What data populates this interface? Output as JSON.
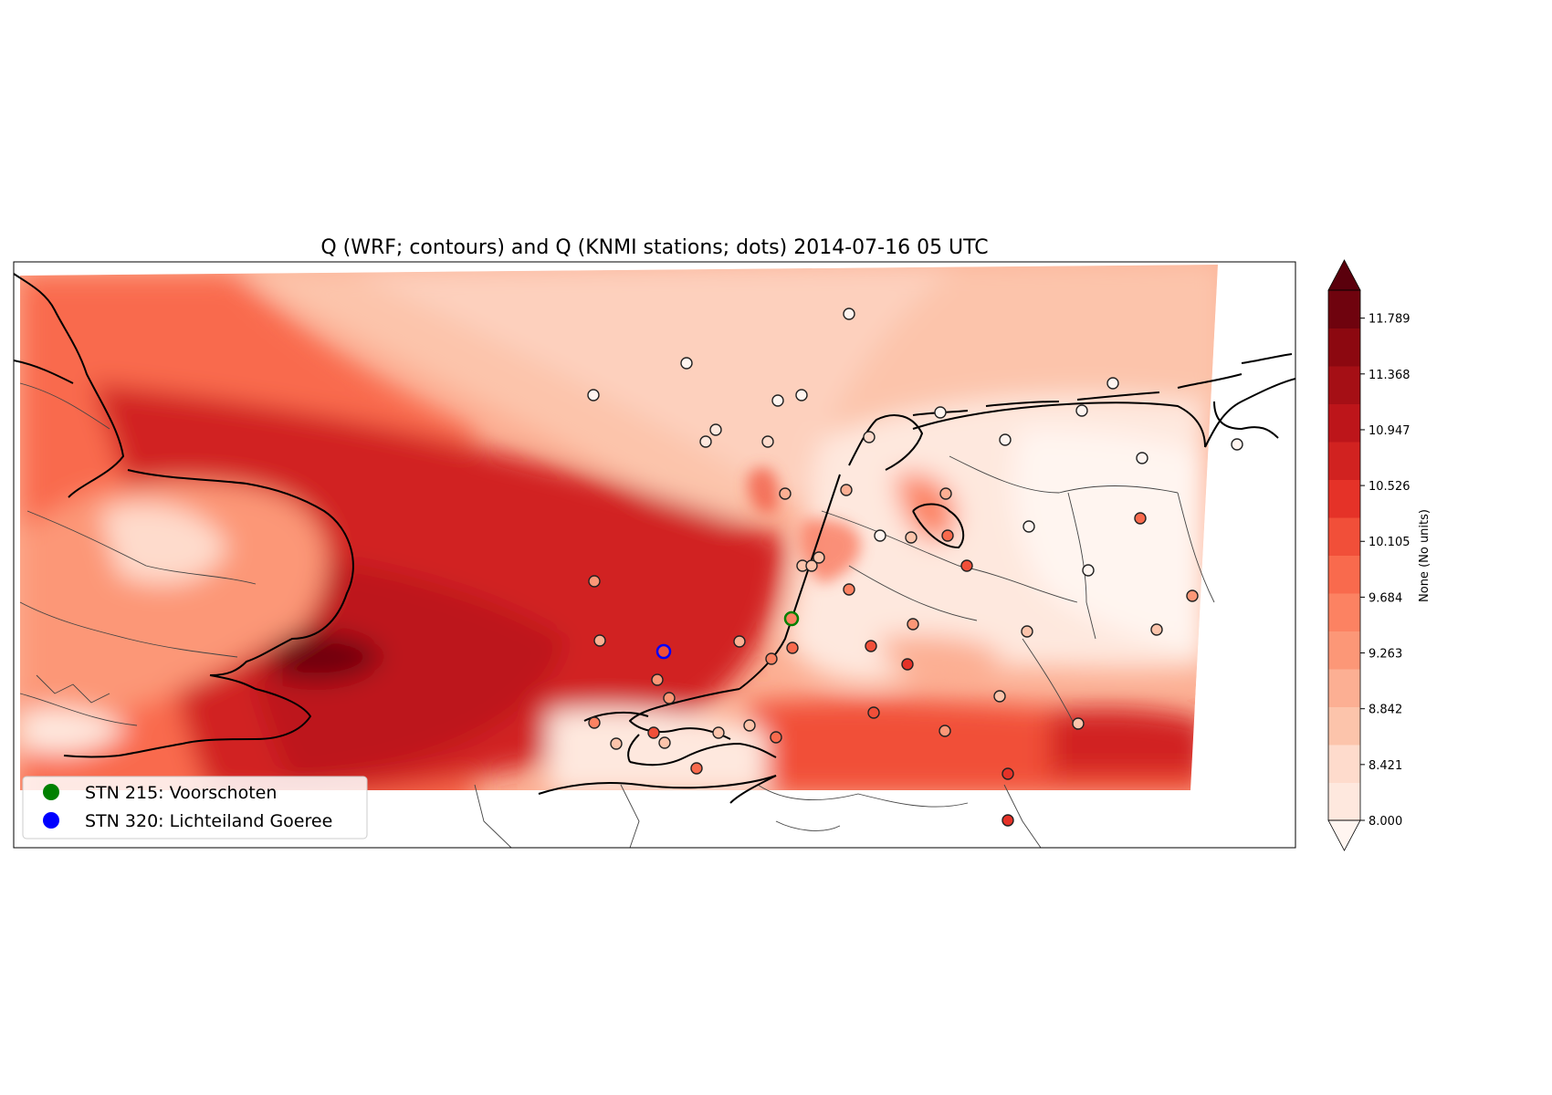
{
  "title": "Q (WRF; contours) and Q (KNMI stations; dots) 2014-07-16 05 UTC",
  "colorbar": {
    "label": "None (No units)",
    "ticks": [
      "8.000",
      "8.421",
      "8.842",
      "9.263",
      "9.684",
      "10.105",
      "10.526",
      "10.947",
      "11.368",
      "11.789"
    ],
    "min": 8.0,
    "max": 12.0,
    "levels": 19,
    "colors": [
      "#fff5f0",
      "#fee8de",
      "#fedbcc",
      "#fcc4ab",
      "#fcaf93",
      "#fc9777",
      "#fc8262",
      "#f96a4d",
      "#f14f39",
      "#e53228",
      "#d12220",
      "#bd151a",
      "#a50f15",
      "#8c0810",
      "#6f030e",
      "#5a000c"
    ]
  },
  "legend": {
    "items": [
      {
        "label": "STN 215: Voorschoten",
        "color": "#008000"
      },
      {
        "label": "STN 320: Lichteiland Goeree",
        "color": "#0000ff"
      }
    ]
  },
  "map": {
    "field": "Q",
    "sources": [
      "WRF contours",
      "KNMI station dots"
    ],
    "region": "North Sea, Netherlands, eastern England",
    "valid_time": "2014-07-16 05 UTC"
  }
}
